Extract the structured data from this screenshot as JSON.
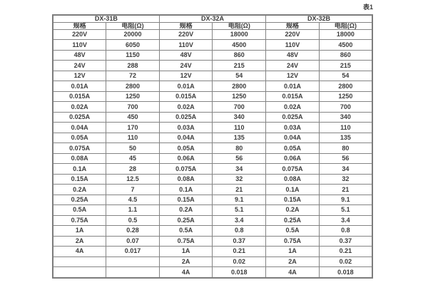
{
  "page": {
    "caption": "表1"
  },
  "colors": {
    "background": "#ffffff",
    "border": "#848484",
    "text": "#3c3c3c"
  },
  "table": {
    "column_groups": [
      {
        "title": "DX-31B",
        "columns": [
          "规格",
          "电阻(Ω)"
        ]
      },
      {
        "title": "DX-32A",
        "columns": [
          "规格",
          "电阻(Ω)"
        ]
      },
      {
        "title": "DX-32B",
        "columns": [
          "规格",
          "电阻(Ω)"
        ]
      }
    ],
    "rows": [
      [
        "220V",
        "20000",
        "220V",
        "18000",
        "220V",
        "18000"
      ],
      [
        "110V",
        "6050",
        "110V",
        "4500",
        "110V",
        "4500"
      ],
      [
        "48V",
        "1150",
        "48V",
        "860",
        "48V",
        "860"
      ],
      [
        "24V",
        "288",
        "24V",
        "215",
        "24V",
        "215"
      ],
      [
        "12V",
        "72",
        "12V",
        "54",
        "12V",
        "54"
      ],
      [
        "0.01A",
        "2800",
        "0.01A",
        "2800",
        "0.01A",
        "2800"
      ],
      [
        "0.015A",
        "1250",
        "0.015A",
        "1250",
        "0.015A",
        "1250"
      ],
      [
        "0.02A",
        "700",
        "0.02A",
        "700",
        "0.02A",
        "700"
      ],
      [
        "0.025A",
        "450",
        "0.025A",
        "340",
        "0.025A",
        "340"
      ],
      [
        "0.04A",
        "170",
        "0.03A",
        "110",
        "0.03A",
        "110"
      ],
      [
        "0.05A",
        "110",
        "0.04A",
        "135",
        "0.04A",
        "135"
      ],
      [
        "0.075A",
        "50",
        "0.05A",
        "80",
        "0.05A",
        "80"
      ],
      [
        "0.08A",
        "45",
        "0.06A",
        "56",
        "0.06A",
        "56"
      ],
      [
        "0.1A",
        "28",
        "0.075A",
        "34",
        "0.075A",
        "34"
      ],
      [
        "0.15A",
        "12.5",
        "0.08A",
        "32",
        "0.08A",
        "32"
      ],
      [
        "0.2A",
        "7",
        "0.1A",
        "21",
        "0.1A",
        "21"
      ],
      [
        "0.25A",
        "4.5",
        "0.15A",
        "9.1",
        "0.15A",
        "9.1"
      ],
      [
        "0.5A",
        "1.1",
        "0.2A",
        "5.1",
        "0.2A",
        "5.1"
      ],
      [
        "0.75A",
        "0.5",
        "0.25A",
        "3.4",
        "0.25A",
        "3.4"
      ],
      [
        "1A",
        "0.28",
        "0.5A",
        "0.8",
        "0.5A",
        "0.8"
      ],
      [
        "2A",
        "0.07",
        "0.75A",
        "0.37",
        "0.75A",
        "0.37"
      ],
      [
        "4A",
        "0.017",
        "1A",
        "0.21",
        "1A",
        "0.21"
      ],
      [
        "",
        "",
        "2A",
        "0.02",
        "2A",
        "0.02"
      ],
      [
        "",
        "",
        "4A",
        "0.018",
        "4A",
        "0.018"
      ]
    ]
  }
}
